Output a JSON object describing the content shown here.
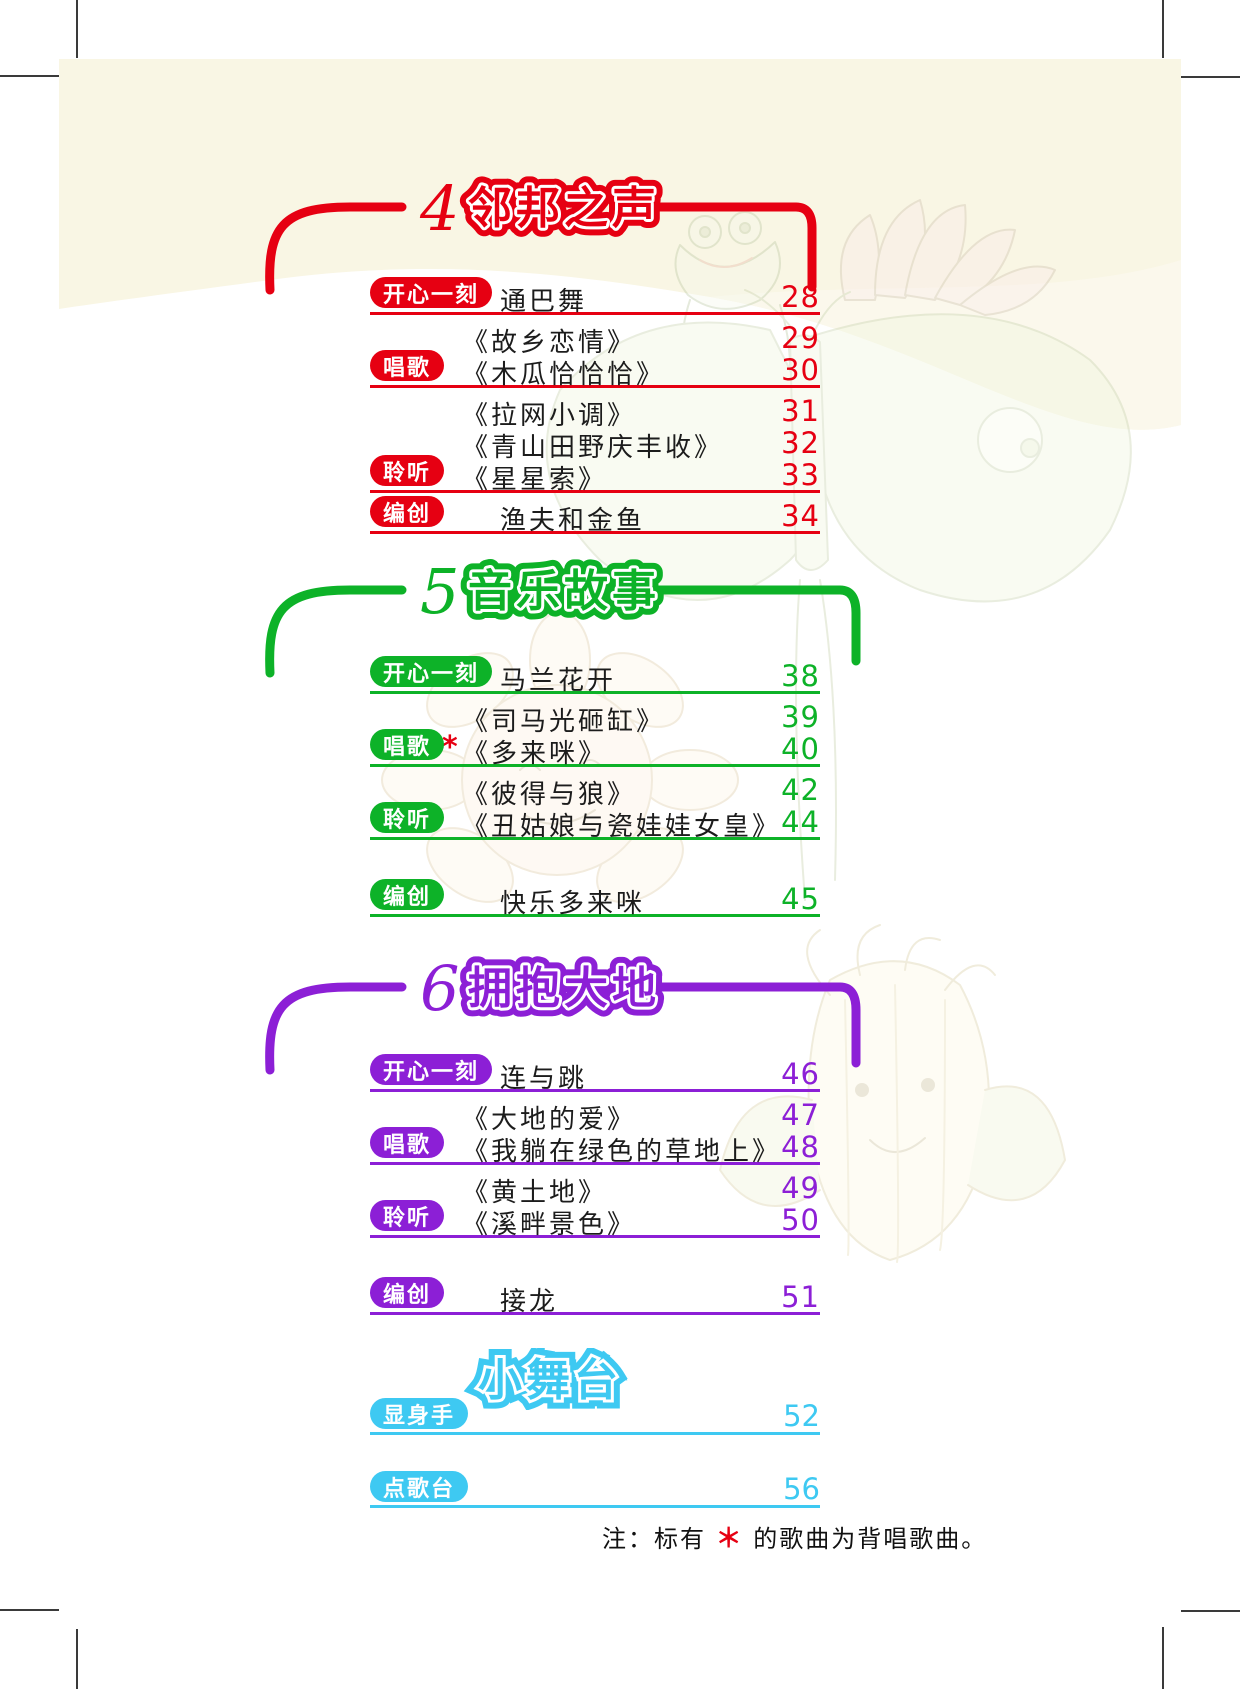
{
  "units": [
    {
      "number": "4",
      "title": "邻邦之声",
      "color": "#e60012",
      "groups": [
        {
          "label": "开心一刻",
          "rows": [
            {
              "title": "通巴舞",
              "page": "28",
              "plain": true,
              "starred": false
            }
          ]
        },
        {
          "label": "唱歌",
          "rows": [
            {
              "title": "《故乡恋情》",
              "page": "29",
              "plain": false,
              "starred": false
            },
            {
              "title": "《木瓜恰恰恰》",
              "page": "30",
              "plain": false,
              "starred": false
            }
          ]
        },
        {
          "label": "聆听",
          "rows": [
            {
              "title": "《拉网小调》",
              "page": "31",
              "plain": false,
              "starred": false
            },
            {
              "title": "《青山田野庆丰收》",
              "page": "32",
              "plain": false,
              "starred": false
            },
            {
              "title": "《星星索》",
              "page": "33",
              "plain": false,
              "starred": false
            }
          ]
        },
        {
          "label": "编创",
          "rows": [
            {
              "title": "渔夫和金鱼",
              "page": "34",
              "plain": true,
              "starred": false
            }
          ]
        }
      ]
    },
    {
      "number": "5",
      "title": "音乐故事",
      "color": "#0db228",
      "groups": [
        {
          "label": "开心一刻",
          "rows": [
            {
              "title": "马兰花开",
              "page": "38",
              "plain": true,
              "starred": false
            }
          ]
        },
        {
          "label": "唱歌",
          "rows": [
            {
              "title": "《司马光砸缸》",
              "page": "39",
              "plain": false,
              "starred": false
            },
            {
              "title": "《多来咪》",
              "page": "40",
              "plain": false,
              "starred": true
            }
          ]
        },
        {
          "label": "聆听",
          "rows": [
            {
              "title": "《彼得与狼》",
              "page": "42",
              "plain": false,
              "starred": false
            },
            {
              "title": "《丑姑娘与瓷娃娃女皇》",
              "page": "44",
              "plain": false,
              "starred": false
            }
          ]
        },
        {
          "label": "编创",
          "gap": true,
          "rows": [
            {
              "title": "快乐多来咪",
              "page": "45",
              "plain": true,
              "starred": false
            }
          ]
        }
      ]
    },
    {
      "number": "6",
      "title": "拥抱大地",
      "color": "#8c1fd6",
      "groups": [
        {
          "label": "开心一刻",
          "rows": [
            {
              "title": "连与跳",
              "page": "46",
              "plain": true,
              "starred": false
            }
          ]
        },
        {
          "label": "唱歌",
          "rows": [
            {
              "title": "《大地的爱》",
              "page": "47",
              "plain": false,
              "starred": false
            },
            {
              "title": "《我躺在绿色的草地上》",
              "page": "48",
              "plain": false,
              "starred": false
            }
          ]
        },
        {
          "label": "聆听",
          "rows": [
            {
              "title": "《黄土地》",
              "page": "49",
              "plain": false,
              "starred": false
            },
            {
              "title": "《溪畔景色》",
              "page": "50",
              "plain": false,
              "starred": false
            }
          ]
        },
        {
          "label": "编创",
          "gap": true,
          "rows": [
            {
              "title": "接龙",
              "page": "51",
              "plain": true,
              "starred": false
            }
          ]
        }
      ]
    }
  ],
  "stage": {
    "title": "小舞台",
    "color": "#3ec9f2",
    "items": [
      {
        "label": "显身手",
        "page": "52"
      },
      {
        "label": "点歌台",
        "page": "56"
      }
    ]
  },
  "note": {
    "prefix": "注：标有 ",
    "star": "＊",
    "suffix": " 的歌曲为背唱歌曲。"
  },
  "decor": {
    "cream_bg": "#f9f6e4",
    "artwork": [
      "lotus-flower",
      "frog",
      "moth-on-leaf",
      "sunflower",
      "corn-character"
    ]
  }
}
